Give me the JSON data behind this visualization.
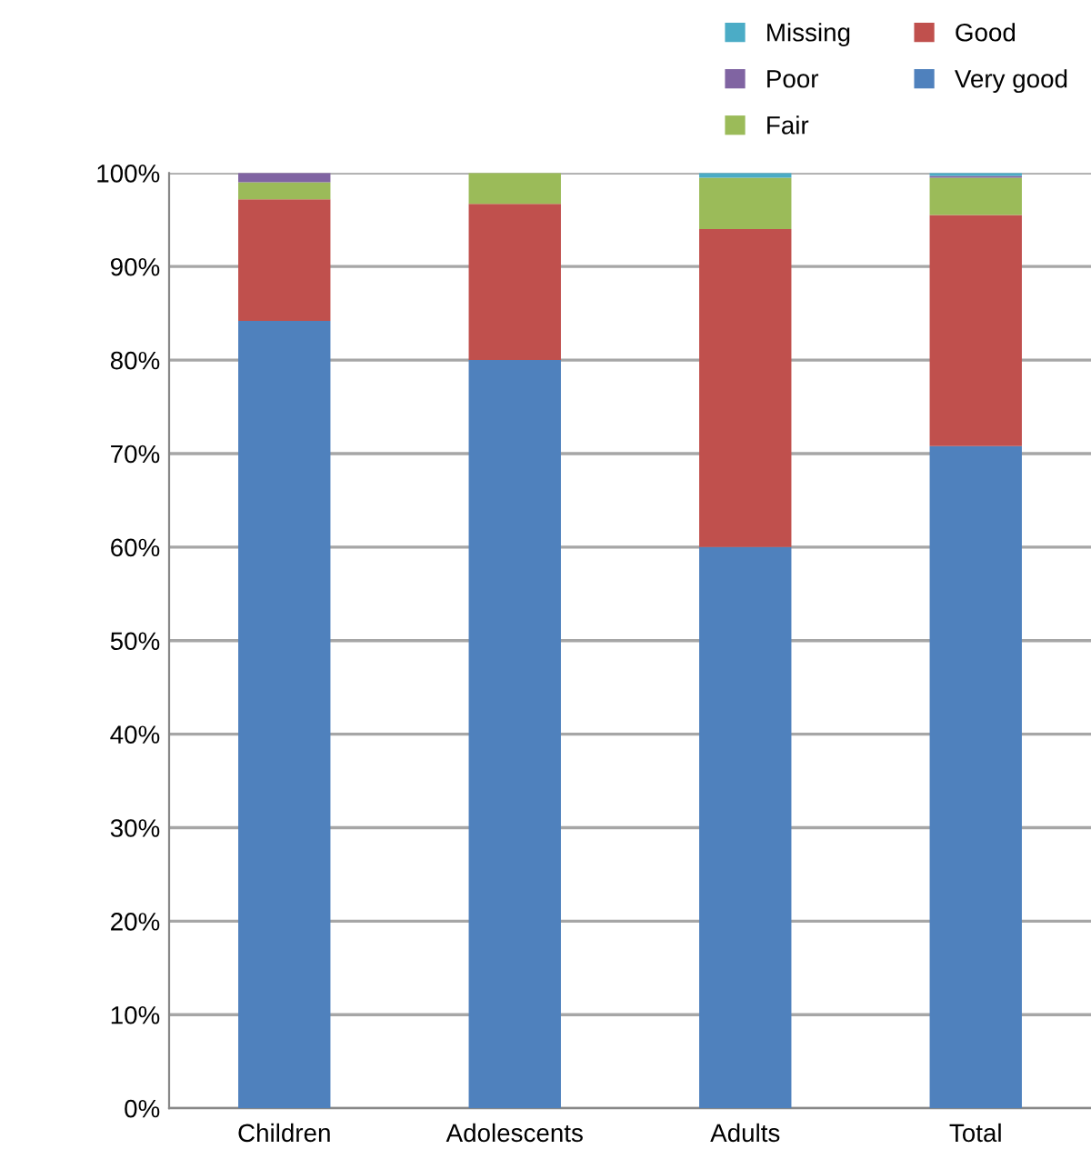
{
  "chart_data": {
    "type": "bar",
    "stacked": true,
    "categories": [
      "Children",
      "Adolescents",
      "Adults",
      "Total"
    ],
    "series": [
      {
        "name": "Very good",
        "color": "#4f81bd",
        "values": [
          84.2,
          80.0,
          60.0,
          70.8
        ]
      },
      {
        "name": "Good",
        "color": "#c0504d",
        "values": [
          13.0,
          16.7,
          34.0,
          24.7
        ]
      },
      {
        "name": "Fair",
        "color": "#9bbb59",
        "values": [
          1.8,
          3.3,
          5.5,
          4.0
        ]
      },
      {
        "name": "Poor",
        "color": "#8064a2",
        "values": [
          1.0,
          0,
          0,
          0.2
        ]
      },
      {
        "name": "Missing",
        "color": "#4bacc6",
        "values": [
          0,
          0,
          0.5,
          0.3
        ]
      }
    ],
    "ylim": [
      0,
      100
    ],
    "yticks": [
      {
        "value": 0,
        "label": "0%"
      },
      {
        "value": 10,
        "label": "10%"
      },
      {
        "value": 20,
        "label": "20%"
      },
      {
        "value": 30,
        "label": "30%"
      },
      {
        "value": 40,
        "label": "40%"
      },
      {
        "value": 50,
        "label": "50%"
      },
      {
        "value": 60,
        "label": "60%"
      },
      {
        "value": 70,
        "label": "70%"
      },
      {
        "value": 80,
        "label": "80%"
      },
      {
        "value": 90,
        "label": "90%"
      },
      {
        "value": 100,
        "label": "100%"
      }
    ],
    "grid": "y",
    "legend": "top right"
  }
}
